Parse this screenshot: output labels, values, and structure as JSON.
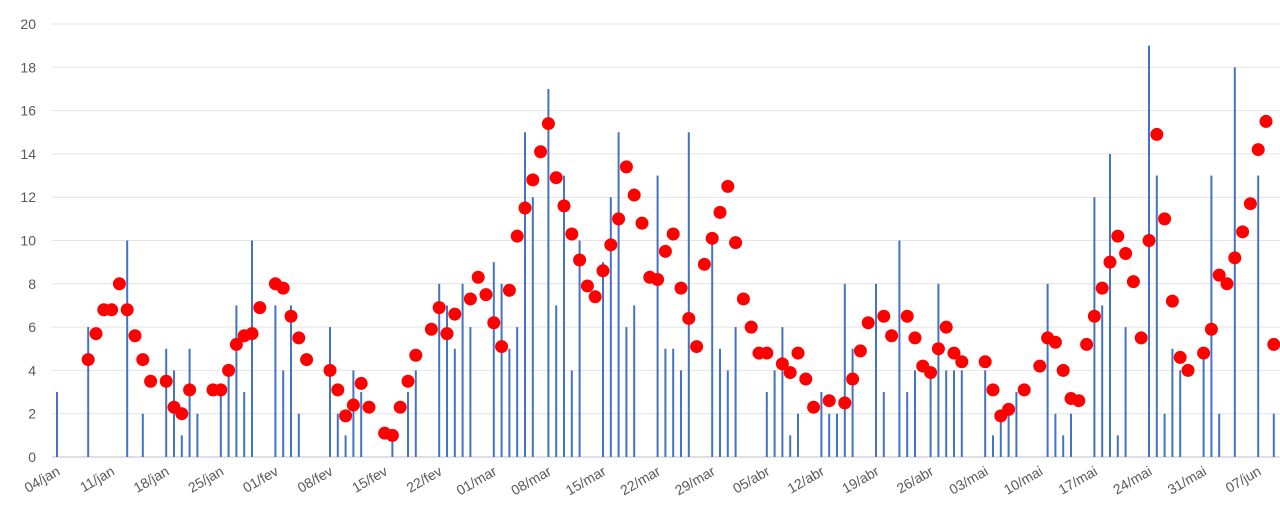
{
  "chart_data": {
    "type": "bar",
    "categories": [
      "04/jan",
      null,
      null,
      null,
      null,
      null,
      null,
      "11/jan",
      null,
      null,
      null,
      null,
      null,
      null,
      "18/jan",
      null,
      null,
      null,
      null,
      null,
      null,
      "25/jan",
      null,
      null,
      null,
      null,
      null,
      null,
      "01/fev",
      null,
      null,
      null,
      null,
      null,
      null,
      "08/fev",
      null,
      null,
      null,
      null,
      null,
      null,
      "15/fev",
      null,
      null,
      null,
      null,
      null,
      null,
      "22/fev",
      null,
      null,
      null,
      null,
      null,
      null,
      "01/mar",
      null,
      null,
      null,
      null,
      null,
      null,
      "08/mar",
      null,
      null,
      null,
      null,
      null,
      null,
      "15/mar",
      null,
      null,
      null,
      null,
      null,
      null,
      "22/mar",
      null,
      null,
      null,
      null,
      null,
      null,
      "29/mar",
      null,
      null,
      null,
      null,
      null,
      null,
      "05/abr",
      null,
      null,
      null,
      null,
      null,
      null,
      "12/abr",
      null,
      null,
      null,
      null,
      null,
      null,
      "19/abr",
      null,
      null,
      null,
      null,
      null,
      null,
      "26/abr",
      null,
      null,
      null,
      null,
      null,
      null,
      "03/mai",
      null,
      null,
      null,
      null,
      null,
      null,
      "10/mai",
      null,
      null,
      null,
      null,
      null,
      null,
      "17/mai",
      null,
      null,
      null,
      null,
      null,
      null,
      "24/mai",
      null,
      null,
      null,
      null,
      null,
      null,
      "31/mai",
      null,
      null,
      null,
      null,
      null,
      null,
      "07/jun",
      null,
      null
    ],
    "series": [
      {
        "type": "bar",
        "color": "#4472c4",
        "values": [
          3,
          0,
          0,
          0,
          6,
          0,
          0,
          0,
          0,
          10,
          0,
          2,
          0,
          0,
          5,
          4,
          1,
          5,
          2,
          0,
          0,
          3,
          4,
          7,
          3,
          10,
          0,
          0,
          7,
          4,
          7,
          2,
          0,
          0,
          0,
          6,
          2,
          1,
          4,
          3,
          0,
          0,
          0,
          1,
          0,
          3,
          4,
          0,
          0,
          8,
          7,
          5,
          8,
          6,
          0,
          0,
          9,
          8,
          5,
          6,
          15,
          12,
          0,
          17,
          7,
          13,
          4,
          10,
          0,
          0,
          9,
          12,
          15,
          6,
          7,
          0,
          0,
          13,
          5,
          5,
          4,
          15,
          0,
          0,
          10,
          5,
          4,
          6,
          0,
          0,
          0,
          3,
          4,
          6,
          1,
          2,
          0,
          0,
          3,
          2,
          2,
          8,
          5,
          0,
          0,
          8,
          3,
          0,
          10,
          3,
          4,
          0,
          4,
          8,
          4,
          4,
          4,
          0,
          0,
          4,
          1,
          2,
          2,
          3,
          0,
          0,
          0,
          8,
          2,
          1,
          2,
          0,
          0,
          12,
          7,
          14,
          1,
          6,
          0,
          0,
          19,
          13,
          2,
          5,
          4,
          0,
          0,
          5,
          13,
          2,
          0,
          18,
          0,
          0,
          13,
          0,
          2
        ]
      },
      {
        "type": "scatter",
        "color": "#ff0000",
        "values": [
          null,
          null,
          null,
          null,
          4.5,
          5.7,
          6.8,
          6.8,
          8,
          6.8,
          5.6,
          4.5,
          3.5,
          null,
          3.5,
          2.3,
          2,
          3.1,
          null,
          null,
          3.1,
          3.1,
          4,
          5.2,
          5.6,
          5.7,
          6.9,
          null,
          8,
          7.8,
          6.5,
          5.5,
          4.5,
          null,
          null,
          4,
          3.1,
          1.9,
          2.4,
          3.4,
          2.3,
          null,
          1.1,
          1,
          2.3,
          3.5,
          4.7,
          null,
          5.9,
          6.9,
          5.7,
          6.6,
          null,
          7.3,
          8.3,
          7.5,
          6.2,
          5.1,
          7.7,
          10.2,
          11.5,
          12.8,
          14.1,
          15.4,
          12.9,
          11.6,
          10.3,
          9.1,
          7.9,
          7.4,
          8.6,
          9.8,
          11,
          13.4,
          12.1,
          10.8,
          8.3,
          8.2,
          9.5,
          10.3,
          7.8,
          6.4,
          5.1,
          8.9,
          10.1,
          11.3,
          12.5,
          9.9,
          7.3,
          6,
          4.8,
          4.8,
          null,
          4.3,
          3.9,
          4.8,
          3.6,
          2.3,
          null,
          2.6,
          null,
          2.5,
          3.6,
          4.9,
          6.2,
          null,
          6.5,
          5.6,
          null,
          6.5,
          5.5,
          4.2,
          3.9,
          5,
          6,
          4.8,
          4.4,
          null,
          null,
          4.4,
          3.1,
          1.9,
          2.2,
          null,
          3.1,
          null,
          4.2,
          5.5,
          5.3,
          4,
          2.7,
          2.6,
          5.2,
          6.5,
          7.8,
          9,
          10.2,
          9.4,
          8.1,
          5.5,
          10,
          14.9,
          11,
          7.2,
          4.6,
          4,
          null,
          4.8,
          5.9,
          8.4,
          8,
          9.2,
          10.4,
          11.7,
          14.2,
          15.5,
          5.2
        ]
      }
    ],
    "ylim": [
      0,
      20
    ],
    "yticks": [
      0,
      2,
      4,
      6,
      8,
      10,
      12,
      14,
      16,
      18,
      20
    ],
    "grid": true
  }
}
